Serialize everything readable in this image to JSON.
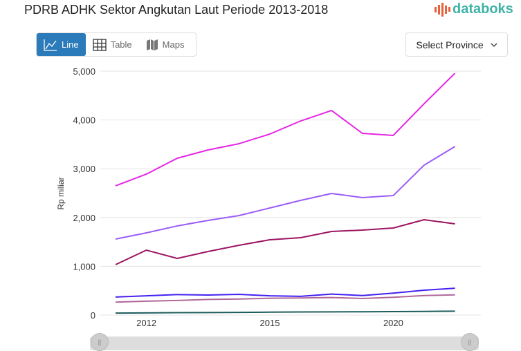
{
  "title": "PDRB ADHK Sektor Angkutan Laut Periode 2013-2018",
  "logo": "databoks",
  "tabs": [
    {
      "label": "Line",
      "icon": "line-chart-icon",
      "active": true
    },
    {
      "label": "Table",
      "icon": "table-icon"
    },
    {
      "label": "Maps",
      "icon": "map-icon"
    }
  ],
  "province_select": {
    "label": "Select Province",
    "icon": "chevron-down-icon"
  },
  "chart_data": {
    "type": "line",
    "title": "PDRB ADHK Sektor Angkutan Laut Periode 2013-2018",
    "ylabel": "Rp miliar",
    "xlabel": "",
    "ylim": [
      0,
      5000
    ],
    "y_ticks": [
      "0",
      "1,000",
      "2,000",
      "3,000",
      "4,000",
      "5,000"
    ],
    "x_tick_labels": [
      {
        "index": 1,
        "label": "2012"
      },
      {
        "index": 5,
        "label": "2015"
      },
      {
        "index": 9,
        "label": "2020"
      }
    ],
    "grid": true,
    "series": [
      {
        "color": "#e526e5",
        "values": [
          2649,
          2890,
          3215,
          3385,
          3513,
          3711,
          3980,
          4193,
          3725,
          3683,
          4334,
          4958
        ]
      },
      {
        "color": "#9b5cf6",
        "values": [
          1558,
          1686,
          1827,
          1941,
          2040,
          2195,
          2351,
          2493,
          2408,
          2450,
          3074,
          3456
        ]
      },
      {
        "color": "#9c1462",
        "values": [
          1034,
          1331,
          1161,
          1303,
          1431,
          1544,
          1586,
          1714,
          1742,
          1785,
          1955,
          1870
        ]
      },
      {
        "color": "#4420f0",
        "values": [
          370,
          395,
          420,
          410,
          425,
          395,
          385,
          430,
          400,
          450,
          510,
          550
        ]
      },
      {
        "color": "#b06898",
        "values": [
          265,
          285,
          300,
          320,
          330,
          345,
          350,
          360,
          340,
          365,
          400,
          415
        ]
      },
      {
        "color": "#1d5c5c",
        "values": [
          40,
          45,
          50,
          52,
          55,
          60,
          63,
          65,
          68,
          70,
          75,
          80
        ]
      }
    ]
  }
}
